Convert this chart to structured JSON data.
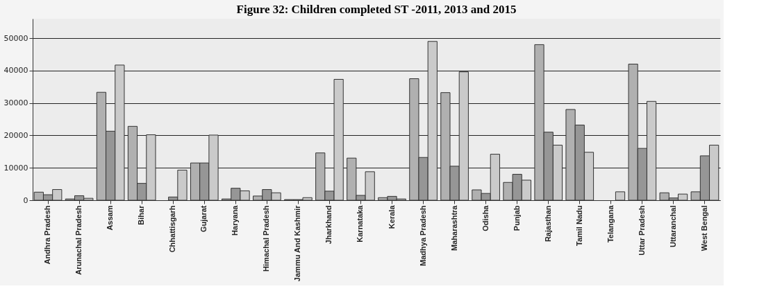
{
  "chart_data": {
    "type": "bar",
    "title": "Figure 32: Children completed ST -2011, 2013 and 2015",
    "categories": [
      "Andhra Pradesh",
      "Arunachal Pradesh",
      "Assam",
      "Bihar",
      "Chhattisgarh",
      "Gujarat",
      "Haryana",
      "Himachal Pradesh",
      "Jammu And Kashmir",
      "Jharkhand",
      "Karnataka",
      "Kerala",
      "Madhya Pradesh",
      "Maharashtra",
      "Odisha",
      "Punjab",
      "Rajasthan",
      "Tamil Nadu",
      "Telangana",
      "Uttar Pradesh",
      "Uttaranchal",
      "West Bengal"
    ],
    "series": [
      {
        "color": "#b0b0b0",
        "values": [
          2500,
          400,
          33300,
          22800,
          null,
          11500,
          400,
          1300,
          200,
          14600,
          13000,
          800,
          37500,
          33200,
          3200,
          5500,
          48000,
          28000,
          null,
          42000,
          2300,
          2600
        ]
      },
      {
        "color": "#969696",
        "values": [
          1700,
          1400,
          21300,
          5200,
          1000,
          11500,
          3700,
          3300,
          200,
          2800,
          1500,
          1200,
          13200,
          10500,
          2100,
          8000,
          21000,
          23200,
          null,
          16000,
          700,
          13700
        ]
      },
      {
        "color": "#cacaca",
        "values": [
          3300,
          600,
          41700,
          20200,
          9300,
          20100,
          2900,
          2300,
          800,
          37300,
          8800,
          400,
          49000,
          39600,
          14200,
          6200,
          17000,
          14800,
          2600,
          30500,
          1900,
          17000
        ]
      }
    ],
    "ylim": [
      0,
      56000
    ],
    "yticks": [
      0,
      10000,
      20000,
      30000,
      40000,
      50000
    ],
    "grid": "y"
  }
}
